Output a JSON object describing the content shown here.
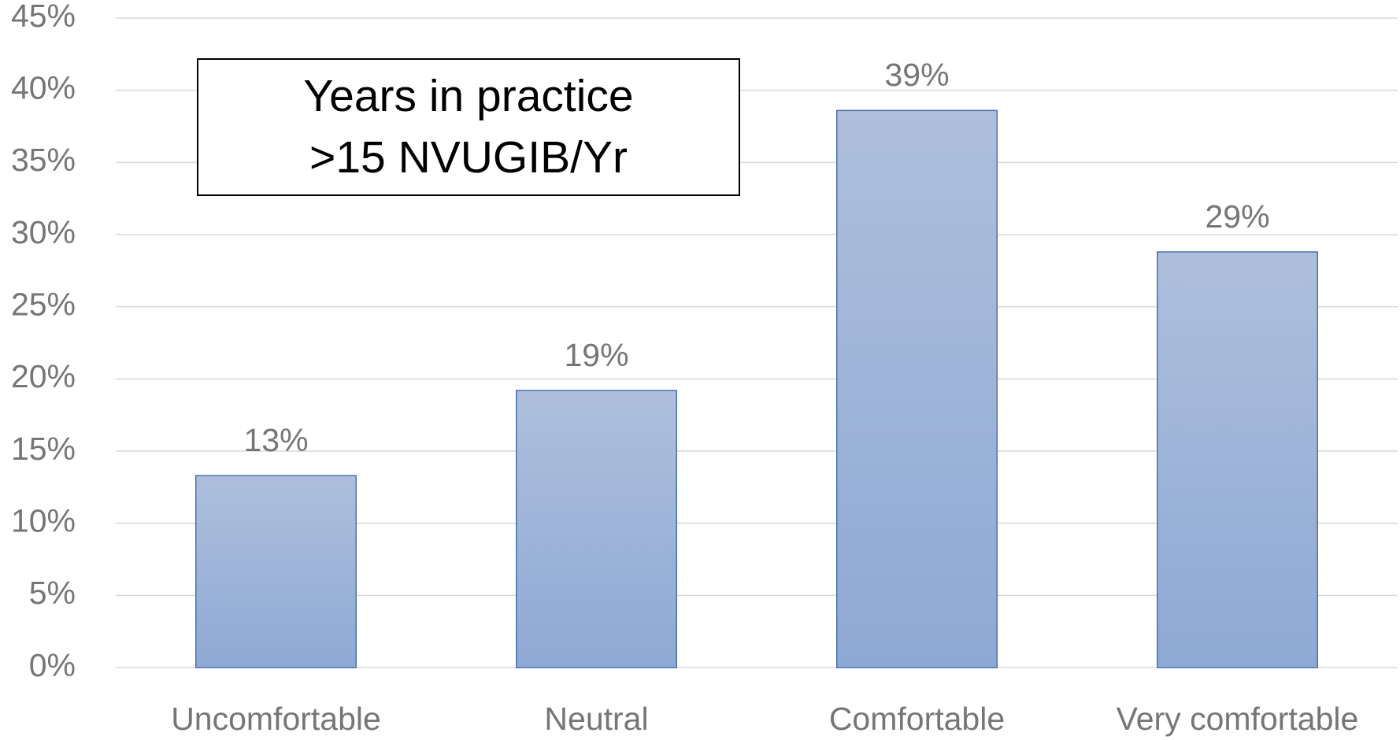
{
  "chart_data": {
    "type": "bar",
    "annotation": [
      "Years in practice",
      ">15 NVUGIB/Yr"
    ],
    "categories": [
      "Uncomfortable",
      "Neutral",
      "Comfortable",
      "Very comfortable"
    ],
    "values": [
      13.3,
      19.2,
      38.6,
      28.8
    ],
    "value_labels": [
      "13%",
      "19%",
      "39%",
      "29%"
    ],
    "color": "#4a72b0",
    "ylim": [
      0,
      45
    ],
    "yticks": [
      {
        "value": 0,
        "label": "0%"
      },
      {
        "value": 5,
        "label": "5%"
      },
      {
        "value": 10,
        "label": "10%"
      },
      {
        "value": 15,
        "label": "15%"
      },
      {
        "value": 20,
        "label": "20%"
      },
      {
        "value": 25,
        "label": "25%"
      },
      {
        "value": 30,
        "label": "30%"
      },
      {
        "value": 35,
        "label": "35%"
      },
      {
        "value": 40,
        "label": "40%"
      },
      {
        "value": 45,
        "label": "45%"
      }
    ],
    "grid": true
  }
}
